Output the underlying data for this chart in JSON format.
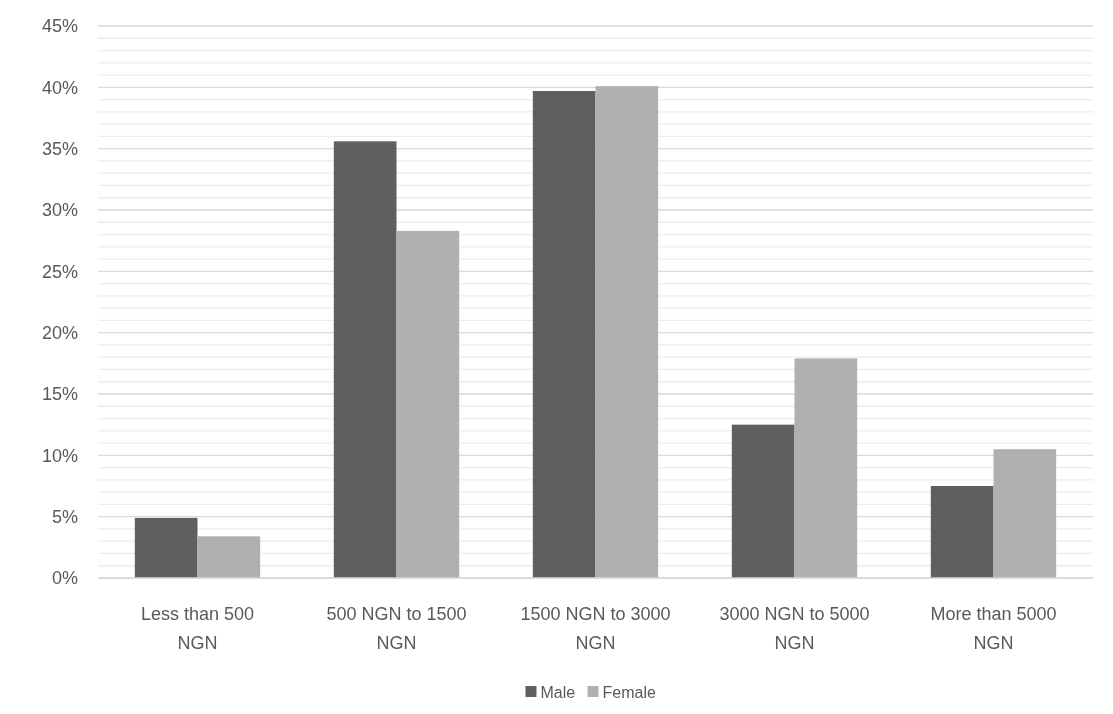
{
  "chart_data": {
    "type": "bar",
    "categories": [
      "Less than 500 NGN",
      "500 NGN to 1500 NGN",
      "1500 NGN to 3000 NGN",
      "3000 NGN to 5000 NGN",
      "More than 5000 NGN"
    ],
    "series": [
      {
        "name": "Male",
        "color": "#5f5f5f",
        "values": [
          4.9,
          35.6,
          39.7,
          12.5,
          7.5
        ]
      },
      {
        "name": "Female",
        "color": "#b0b0b0",
        "values": [
          3.4,
          28.3,
          40.1,
          17.9,
          10.5
        ]
      }
    ],
    "ylim": [
      0,
      45
    ],
    "yticks": [
      {
        "value": 0,
        "label": "0%"
      },
      {
        "value": 1,
        "label": null
      },
      {
        "value": 2,
        "label": null
      },
      {
        "value": 3,
        "label": null
      },
      {
        "value": 4,
        "label": null
      },
      {
        "value": 5,
        "label": "5%"
      },
      {
        "value": 6,
        "label": null
      },
      {
        "value": 7,
        "label": null
      },
      {
        "value": 8,
        "label": null
      },
      {
        "value": 9,
        "label": null
      },
      {
        "value": 10,
        "label": "10%"
      },
      {
        "value": 11,
        "label": null
      },
      {
        "value": 12,
        "label": null
      },
      {
        "value": 13,
        "label": null
      },
      {
        "value": 14,
        "label": null
      },
      {
        "value": 15,
        "label": "15%"
      },
      {
        "value": 16,
        "label": null
      },
      {
        "value": 17,
        "label": null
      },
      {
        "value": 18,
        "label": null
      },
      {
        "value": 19,
        "label": null
      },
      {
        "value": 20,
        "label": "20%"
      },
      {
        "value": 21,
        "label": null
      },
      {
        "value": 22,
        "label": null
      },
      {
        "value": 23,
        "label": null
      },
      {
        "value": 24,
        "label": null
      },
      {
        "value": 25,
        "label": "25%"
      },
      {
        "value": 26,
        "label": null
      },
      {
        "value": 27,
        "label": null
      },
      {
        "value": 28,
        "label": null
      },
      {
        "value": 29,
        "label": null
      },
      {
        "value": 30,
        "label": "30%"
      },
      {
        "value": 31,
        "label": null
      },
      {
        "value": 32,
        "label": null
      },
      {
        "value": 33,
        "label": null
      },
      {
        "value": 34,
        "label": null
      },
      {
        "value": 35,
        "label": "35%"
      },
      {
        "value": 36,
        "label": null
      },
      {
        "value": 37,
        "label": null
      },
      {
        "value": 38,
        "label": null
      },
      {
        "value": 39,
        "label": null
      },
      {
        "value": 40,
        "label": "40%"
      },
      {
        "value": 41,
        "label": null
      },
      {
        "value": 42,
        "label": null
      },
      {
        "value": 43,
        "label": null
      },
      {
        "value": 44,
        "label": null
      },
      {
        "value": 45,
        "label": "45%"
      }
    ],
    "grid": "y",
    "legend": "bottom"
  }
}
